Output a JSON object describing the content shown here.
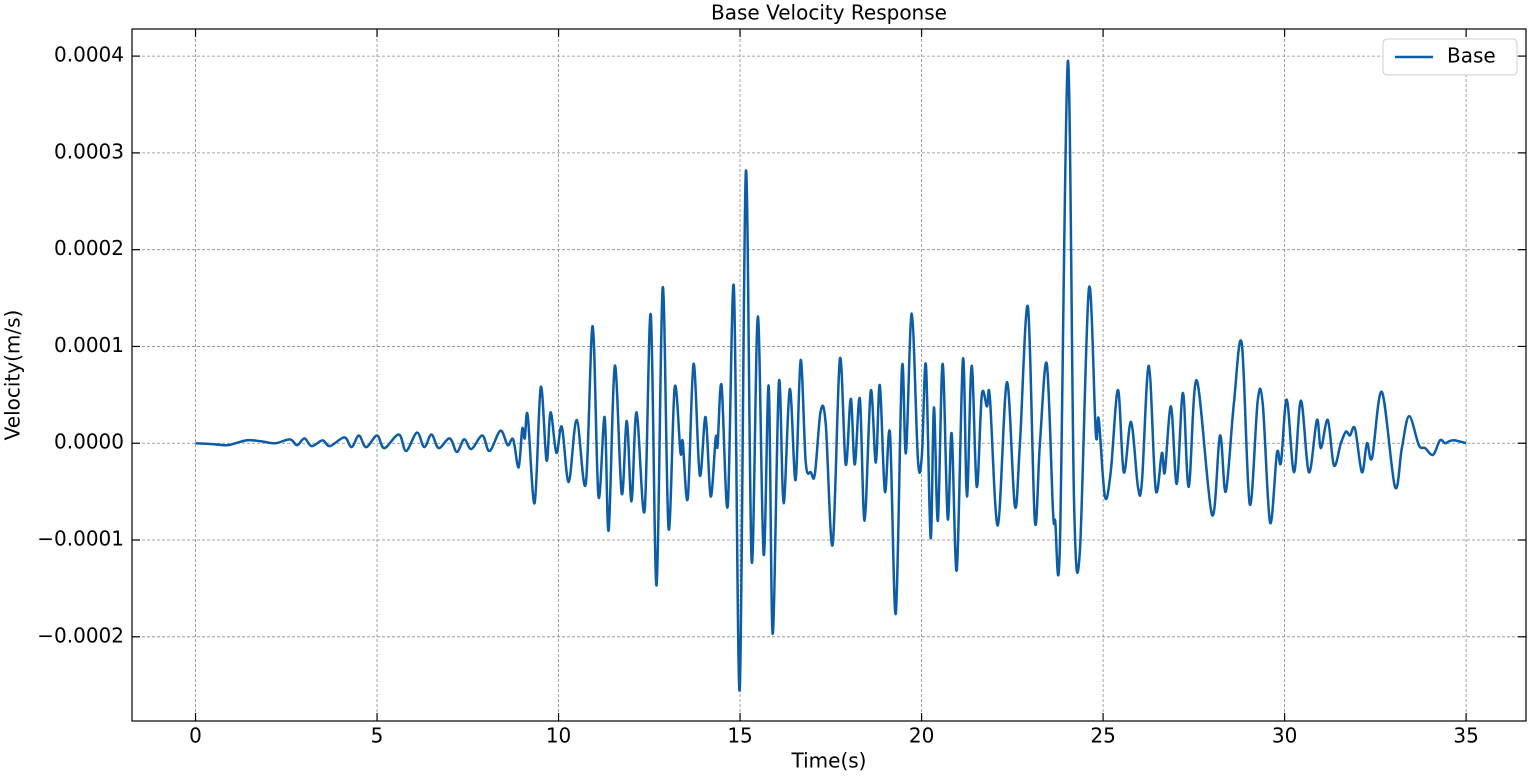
{
  "chart_data": {
    "type": "line",
    "title": "Base Velocity Response",
    "xlabel": "Time(s)",
    "ylabel": "Velocity(m/s)",
    "xlim": [
      -1.75,
      36.65
    ],
    "ylim": [
      -0.000287,
      0.000428
    ],
    "xticks": [
      0,
      5,
      10,
      15,
      20,
      25,
      30,
      35
    ],
    "yticks": [
      {
        "value": -0.0002,
        "label": "−0.0002"
      },
      {
        "value": -0.0001,
        "label": "−0.0001"
      },
      {
        "value": 0,
        "label": "0.0000"
      },
      0.0001,
      0.0002,
      0.0003,
      0.0004
    ],
    "grid": true,
    "legend": "upper right",
    "x": [
      0,
      0.5,
      0.9,
      1.4,
      1.8,
      2.2,
      2.6,
      2.8,
      3.0,
      3.2,
      3.5,
      3.7,
      4.1,
      4.3,
      4.5,
      4.7,
      5.0,
      5.2,
      5.6,
      5.8,
      6.1,
      6.3,
      6.5,
      6.7,
      7.0,
      7.2,
      7.4,
      7.6,
      7.9,
      8.1,
      8.4,
      8.6,
      8.75,
      8.9,
      9.0,
      9.07,
      9.15,
      9.34,
      9.51,
      9.67,
      9.78,
      9.94,
      10.09,
      10.28,
      10.5,
      10.75,
      10.94,
      11.1,
      11.27,
      11.38,
      11.55,
      11.74,
      11.88,
      12.01,
      12.15,
      12.37,
      12.54,
      12.7,
      12.87,
      13.03,
      13.2,
      13.36,
      13.42,
      13.56,
      13.72,
      13.89,
      14.05,
      14.19,
      14.33,
      14.38,
      14.49,
      14.66,
      14.83,
      14.99,
      15.16,
      15.32,
      15.49,
      15.65,
      15.79,
      15.9,
      16.07,
      16.2,
      16.37,
      16.53,
      16.67,
      16.81,
      16.95,
      17.06,
      17.22,
      17.36,
      17.55,
      17.75,
      17.91,
      18.05,
      18.16,
      18.3,
      18.43,
      18.6,
      18.74,
      18.85,
      18.99,
      19.13,
      19.29,
      19.46,
      19.57,
      19.73,
      19.9,
      20.01,
      20.12,
      20.25,
      20.34,
      20.45,
      20.58,
      20.72,
      20.83,
      20.97,
      21.14,
      21.25,
      21.38,
      21.52,
      21.66,
      21.8,
      21.88,
      22.1,
      22.35,
      22.57,
      22.71,
      22.93,
      23.12,
      23.26,
      23.45,
      23.62,
      23.68,
      23.81,
      24.03,
      24.2,
      24.36,
      24.61,
      24.8,
      24.88,
      25.05,
      25.21,
      25.41,
      25.57,
      25.77,
      25.96,
      26.07,
      26.26,
      26.45,
      26.62,
      26.7,
      26.87,
      27.03,
      27.2,
      27.36,
      27.58,
      28.0,
      28.22,
      28.38,
      28.6,
      28.82,
      29.04,
      29.26,
      29.4,
      29.6,
      29.79,
      29.9,
      30.06,
      30.26,
      30.45,
      30.67,
      30.89,
      31.0,
      31.19,
      31.36,
      31.55,
      31.69,
      31.8,
      31.94,
      32.13,
      32.27,
      32.41,
      32.68,
      33.04,
      33.23,
      33.43,
      33.7,
      33.87,
      34.09,
      34.28,
      34.42,
      34.53,
      34.69,
      35.0
    ],
    "series": [
      {
        "name": "Base",
        "color": "#0c5da5",
        "values": [
          0,
          -1e-06,
          -2e-06,
          3e-06,
          2e-06,
          0,
          4e-06,
          -2e-06,
          5e-06,
          -3e-06,
          3e-06,
          -3e-06,
          6e-06,
          -4e-06,
          8e-06,
          -4e-06,
          8e-06,
          -5e-06,
          9e-06,
          -8e-06,
          1.1e-05,
          -4e-06,
          9e-06,
          -5e-06,
          5e-06,
          -9e-06,
          4e-06,
          -6e-06,
          8e-06,
          -8e-06,
          1.3e-05,
          -2e-06,
          4e-06,
          -2.5e-05,
          1.5e-05,
          5e-06,
          2.9e-05,
          -6.2e-05,
          5.8e-05,
          -1.8e-05,
          3.2e-05,
          -1e-05,
          1.7e-05,
          -4e-05,
          2.4e-05,
          -4.2e-05,
          0.000121,
          -5.5e-05,
          2.7e-05,
          -9e-05,
          8e-05,
          -5.2e-05,
          2.3e-05,
          -6e-05,
          3.2e-05,
          -7e-05,
          0.000133,
          -0.000147,
          0.000161,
          -8.8e-05,
          5.8e-05,
          -1e-05,
          2e-06,
          -5.7e-05,
          8.2e-05,
          -3.3e-05,
          2.7e-05,
          -5.5e-05,
          6e-06,
          -3e-06,
          6e-05,
          -6.5e-05,
          0.000161,
          -0.000255,
          0.000281,
          -0.000122,
          0.000131,
          -0.000115,
          5.9e-05,
          -0.000197,
          6.3e-05,
          -6.2e-05,
          5.6e-05,
          -3.8e-05,
          8.6e-05,
          -2e-05,
          -3e-05,
          -3.2e-05,
          3.3e-05,
          2e-05,
          -0.000105,
          8.7e-05,
          -2.2e-05,
          4.6e-05,
          -2.2e-05,
          4.6e-05,
          -8e-05,
          5.4e-05,
          -2e-05,
          6e-05,
          -5e-05,
          1e-05,
          -0.000176,
          7.8e-05,
          -1e-05,
          0.000134,
          -1.7e-05,
          -1.2e-05,
          8.1e-05,
          -9.8e-05,
          3.7e-05,
          -8e-05,
          8.2e-05,
          -7.8e-05,
          1e-05,
          -0.000131,
          8.7e-05,
          -5.5e-05,
          8e-05,
          -4.5e-05,
          5e-05,
          3.8e-05,
          4.8e-05,
          -8.5e-05,
          6.3e-05,
          -6.5e-05,
          0,
          0.000141,
          -8e-05,
          0,
          8.2e-05,
          -7e-05,
          -8e-05,
          -0.000106,
          0.000395,
          -6e-05,
          -0.000112,
          0.00016,
          1e-05,
          2.5e-05,
          -5.5e-05,
          -3e-05,
          5.5e-05,
          -3e-05,
          2.2e-05,
          -4.5e-05,
          -4e-05,
          8e-05,
          -4.8e-05,
          -1e-05,
          -3e-05,
          3.8e-05,
          -4.2e-05,
          5.2e-05,
          -4.5e-05,
          6.5e-05,
          -7.4e-05,
          8e-06,
          -5e-05,
          4e-05,
          0.000103,
          -6.3e-05,
          4.4e-05,
          4e-05,
          -8.2e-05,
          -1e-05,
          -2e-05,
          4.5e-05,
          -3e-05,
          4.4e-05,
          -3e-05,
          2.4e-05,
          -5e-06,
          2.4e-05,
          -2.3e-05,
          0,
          1.2e-05,
          8e-06,
          1.5e-05,
          -3e-05,
          0,
          -1.5e-05,
          5.3e-05,
          -4.5e-05,
          -5e-06,
          2.8e-05,
          -2e-06,
          -5e-06,
          -1.2e-05,
          3e-06,
          0,
          2e-06,
          3e-06,
          0
        ]
      }
    ]
  }
}
